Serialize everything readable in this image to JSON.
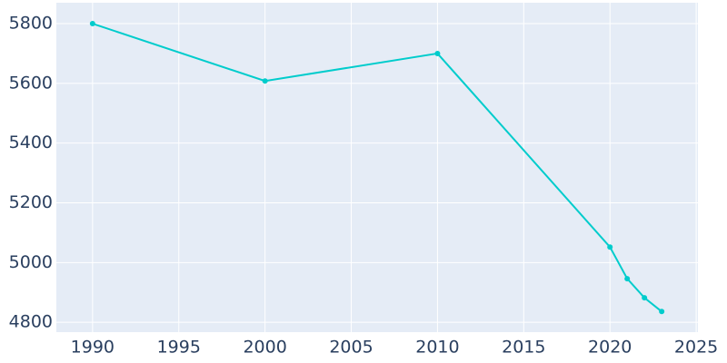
{
  "chart_data": {
    "type": "line",
    "x": [
      1990,
      2000,
      2010,
      2020,
      2021,
      2022,
      2023
    ],
    "series": [
      {
        "color": "#00cccc",
        "values": [
          5800,
          5608,
          5700,
          5052,
          4946,
          4882,
          4836
        ]
      }
    ],
    "xlim": [
      1987.9,
      2025.1
    ],
    "xticks": [
      1990,
      1995,
      2000,
      2005,
      2010,
      2015,
      2020,
      2025
    ],
    "ylim": [
      4767,
      5870
    ],
    "yticks": [
      4800,
      5000,
      5200,
      5400,
      5600,
      5800
    ],
    "grid": true
  }
}
